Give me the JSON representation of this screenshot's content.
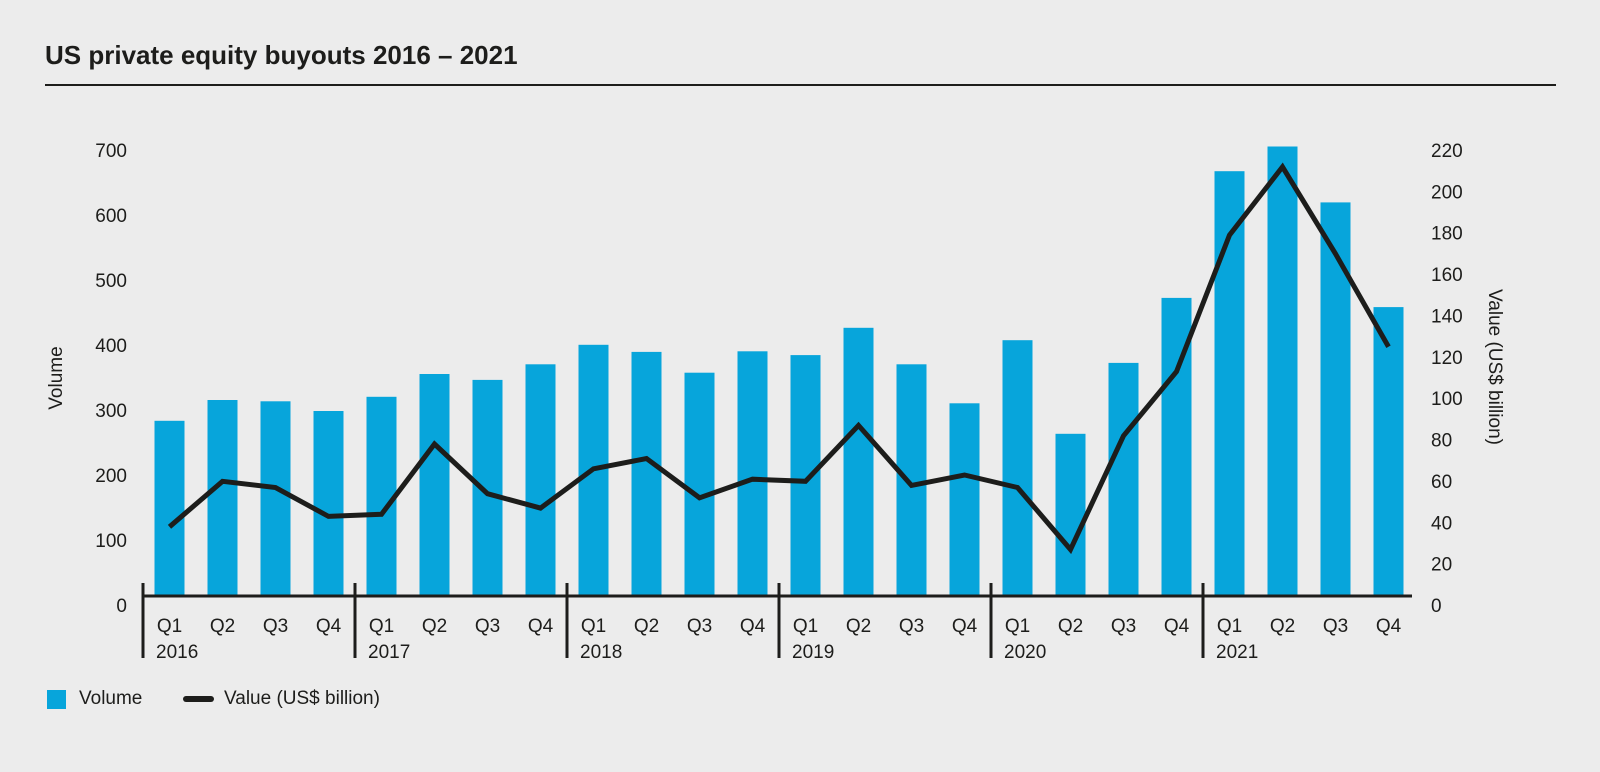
{
  "title": "US private equity buyouts 2016 – 2021",
  "axes": {
    "left": {
      "title": "Volume",
      "ticks": [
        0,
        100,
        200,
        300,
        400,
        500,
        600,
        700
      ]
    },
    "right": {
      "title": "Value (US$ billion)",
      "ticks": [
        0,
        20,
        40,
        60,
        80,
        100,
        120,
        140,
        160,
        180,
        200,
        220
      ]
    }
  },
  "legend": {
    "volume_label": "Volume",
    "value_label": "Value (US$ billion)"
  },
  "colors": {
    "bar": "#07a5db",
    "line": "#1d1d1b",
    "background": "#ececec",
    "text": "#1d1d1b"
  },
  "chart_data": {
    "type": "bar+line dual-axis combo",
    "years": [
      "2016",
      "2017",
      "2018",
      "2019",
      "2020",
      "2021"
    ],
    "quarters": [
      "Q1",
      "Q2",
      "Q3",
      "Q4"
    ],
    "series": [
      {
        "name": "Volume",
        "type": "bar",
        "axis": "left",
        "values": [
          268,
          300,
          298,
          283,
          305,
          340,
          331,
          355,
          385,
          374,
          342,
          375,
          369,
          411,
          355,
          295,
          392,
          248,
          357,
          457,
          652,
          690,
          604,
          443
        ]
      },
      {
        "name": "Value (US$ billion)",
        "type": "line",
        "axis": "right",
        "values": [
          33,
          55,
          52,
          38,
          39,
          73,
          49,
          42,
          61,
          66,
          47,
          56,
          55,
          82,
          53,
          58,
          52,
          22,
          77,
          108,
          174,
          207,
          165,
          120
        ]
      }
    ],
    "left_ylim": [
      0,
      700
    ],
    "right_ylim": [
      0,
      220
    ],
    "grid": false,
    "legend_position": "bottom-left"
  }
}
